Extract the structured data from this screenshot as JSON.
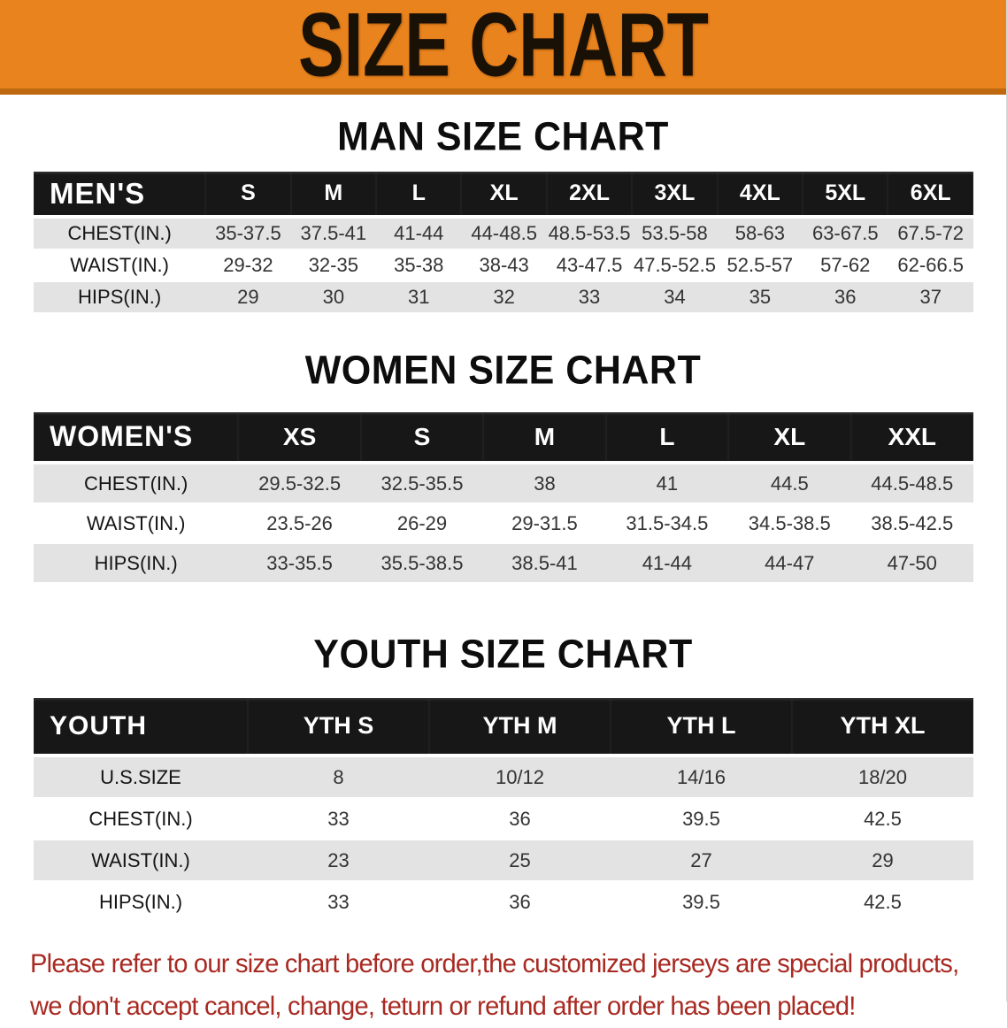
{
  "banner": {
    "title": "SIZE CHART",
    "bg_color": "#E9831E",
    "border_color": "#BE680F",
    "text_color": "#1a1106"
  },
  "chart_data": [
    {
      "type": "table",
      "title": "MAN SIZE CHART",
      "corner_label": "MEN'S",
      "columns": [
        "S",
        "M",
        "L",
        "XL",
        "2XL",
        "3XL",
        "4XL",
        "5XL",
        "6XL"
      ],
      "rows": [
        {
          "label": "CHEST(IN.)",
          "values": [
            "35-37.5",
            "37.5-41",
            "41-44",
            "44-48.5",
            "48.5-53.5",
            "53.5-58",
            "58-63",
            "63-67.5",
            "67.5-72"
          ]
        },
        {
          "label": "WAIST(IN.)",
          "values": [
            "29-32",
            "32-35",
            "35-38",
            "38-43",
            "43-47.5",
            "47.5-52.5",
            "52.5-57",
            "57-62",
            "62-66.5"
          ]
        },
        {
          "label": "HIPS(IN.)",
          "values": [
            "29",
            "30",
            "31",
            "32",
            "33",
            "34",
            "35",
            "36",
            "37"
          ]
        }
      ]
    },
    {
      "type": "table",
      "title": "WOMEN SIZE CHART",
      "corner_label": "WOMEN'S",
      "columns": [
        "XS",
        "S",
        "M",
        "L",
        "XL",
        "XXL"
      ],
      "rows": [
        {
          "label": "CHEST(IN.)",
          "values": [
            "29.5-32.5",
            "32.5-35.5",
            "38",
            "41",
            "44.5",
            "44.5-48.5"
          ]
        },
        {
          "label": "WAIST(IN.)",
          "values": [
            "23.5-26",
            "26-29",
            "29-31.5",
            "31.5-34.5",
            "34.5-38.5",
            "38.5-42.5"
          ]
        },
        {
          "label": "HIPS(IN.)",
          "values": [
            "33-35.5",
            "35.5-38.5",
            "38.5-41",
            "41-44",
            "44-47",
            "47-50"
          ]
        }
      ]
    },
    {
      "type": "table",
      "title": "YOUTH SIZE CHART",
      "corner_label": "YOUTH",
      "columns": [
        "YTH S",
        "YTH M",
        "YTH L",
        "YTH XL"
      ],
      "rows": [
        {
          "label": "U.S.SIZE",
          "values": [
            "8",
            "10/12",
            "14/16",
            "18/20"
          ]
        },
        {
          "label": "CHEST(IN.)",
          "values": [
            "33",
            "36",
            "39.5",
            "42.5"
          ]
        },
        {
          "label": "WAIST(IN.)",
          "values": [
            "23",
            "25",
            "27",
            "29"
          ]
        },
        {
          "label": "HIPS(IN.)",
          "values": [
            "33",
            "36",
            "39.5",
            "42.5"
          ]
        }
      ]
    }
  ],
  "footer": {
    "color": "#A82A22",
    "lines": [
      "Please refer to our size chart before order,the customized jerseys are special products,",
      "we don't accept cancel, change, teturn or refund after order has been placed!"
    ]
  }
}
